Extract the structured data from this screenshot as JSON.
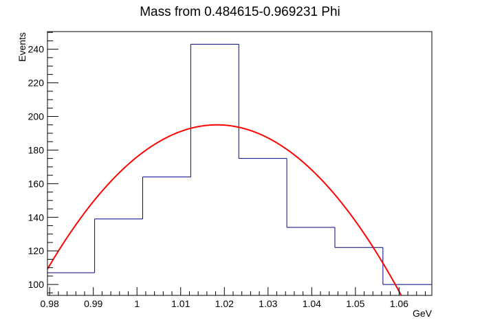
{
  "chart_data": {
    "type": "bar",
    "title": "Mass from 0.484615-0.969231 Phi",
    "xlabel": "GeV",
    "ylabel": "Events",
    "xlim": [
      0.9795,
      1.0675
    ],
    "ylim": [
      93.5,
      250.5
    ],
    "x_ticks": [
      0.98,
      0.99,
      1.0,
      1.01,
      1.02,
      1.03,
      1.04,
      1.05,
      1.06
    ],
    "x_tick_labels": [
      "0.98",
      "0.99",
      "1",
      "1.01",
      "1.02",
      "1.03",
      "1.04",
      "1.05",
      "1.06"
    ],
    "y_ticks": [
      100,
      120,
      140,
      160,
      180,
      200,
      220,
      240
    ],
    "y_tick_labels": [
      "100",
      "120",
      "140",
      "160",
      "180",
      "200",
      "220",
      "240"
    ],
    "histogram": {
      "bin_edges": [
        0.9795,
        0.9903,
        1.0013,
        1.0123,
        1.0233,
        1.0343,
        1.0453,
        1.0563,
        1.0675
      ],
      "values": [
        107,
        139,
        164,
        243,
        175,
        134,
        122,
        100
      ],
      "color": "#000080"
    },
    "fit": {
      "type": "parabola",
      "peak_x": 1.0183,
      "peak_y": 195,
      "curvature": -57000,
      "color": "#ff0000"
    },
    "grid": false,
    "legend": "none"
  }
}
